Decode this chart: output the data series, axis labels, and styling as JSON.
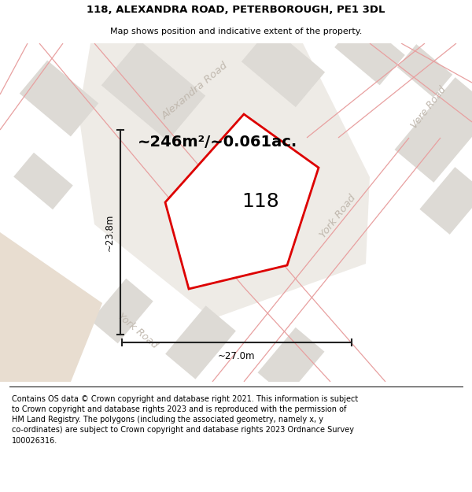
{
  "title_line1": "118, ALEXANDRA ROAD, PETERBOROUGH, PE1 3DL",
  "title_line2": "Map shows position and indicative extent of the property.",
  "footer_text": "Contains OS data © Crown copyright and database right 2021. This information is subject to Crown copyright and database rights 2023 and is reproduced with the permission of HM Land Registry. The polygons (including the associated geometry, namely x, y co-ordinates) are subject to Crown copyright and database rights 2023 Ordnance Survey 100026316.",
  "area_label": "~246m²/~0.061ac.",
  "property_number": "118",
  "width_label": "~27.0m",
  "height_label": "~23.8m",
  "bg_map_color": "#f5f2ee",
  "block_color": "#dddad5",
  "road_line_color": "#e8a0a0",
  "property_outline_color": "#dd0000",
  "road_label_color": "#c0b8ae",
  "dimension_line_color": "#222222",
  "title_fontsize": 9.5,
  "subtitle_fontsize": 8.0,
  "area_fontsize": 14,
  "number_fontsize": 18,
  "dim_fontsize": 8.5,
  "road_label_fontsize": 9.5,
  "footer_fontsize": 7.0
}
